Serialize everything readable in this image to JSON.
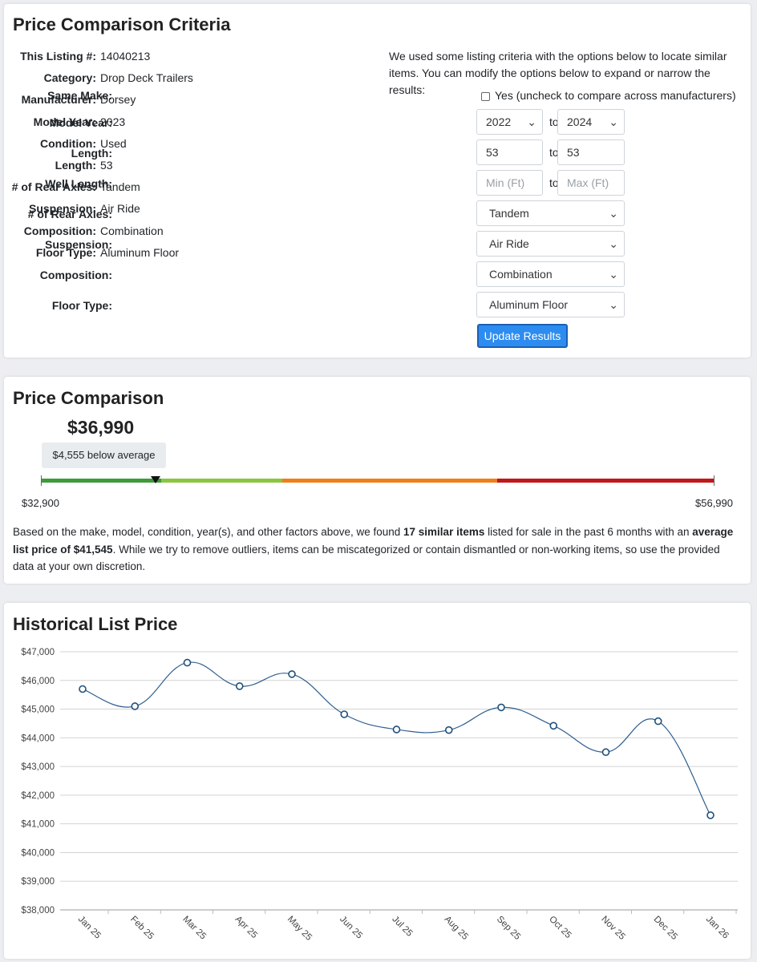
{
  "criteria": {
    "title": "Price Comparison Criteria",
    "specs": [
      {
        "label": "This Listing #:",
        "value": "14040213"
      },
      {
        "label": "Category:",
        "value": "Drop Deck Trailers"
      },
      {
        "label": "Manufacturer:",
        "value": "Dorsey"
      },
      {
        "label": "Model Year:",
        "value": "2023"
      },
      {
        "label": "Condition:",
        "value": "Used"
      },
      {
        "label": "Length:",
        "value": "53"
      },
      {
        "label": "# of Rear Axles:",
        "value": "Tandem"
      },
      {
        "label": "Suspension:",
        "value": "Air Ride"
      },
      {
        "label": "Composition:",
        "value": "Combination"
      },
      {
        "label": "Floor Type:",
        "value": "Aluminum Floor"
      }
    ],
    "intro": "We used some listing criteria with the options below to locate similar items. You can modify the options below to expand or narrow the results:",
    "same_make": {
      "label": "Same Make:",
      "checkbox_text": "Yes (uncheck to compare across manufacturers)",
      "checked": false
    },
    "to_text": "to",
    "model_year": {
      "label": "Model Year:",
      "from": "2022",
      "to": "2024"
    },
    "length": {
      "label": "Length:",
      "from": "53",
      "to": "53"
    },
    "well_length": {
      "label": "Well Length:",
      "min_placeholder": "Min (Ft)",
      "max_placeholder": "Max (Ft)"
    },
    "rear_axles": {
      "label": "# of Rear Axles:",
      "value": "Tandem"
    },
    "suspension": {
      "label": "Suspension:",
      "value": "Air Ride"
    },
    "composition": {
      "label": "Composition:",
      "value": "Combination"
    },
    "floor_type": {
      "label": "Floor Type:",
      "value": "Aluminum Floor"
    },
    "update_button": "Update Results"
  },
  "comparison": {
    "title": "Price Comparison",
    "price": "$36,990",
    "below_text": "$4,555 below average",
    "min": "$32,900",
    "max": "$56,990",
    "scale_colors": [
      "#3f9a3a",
      "#8cc63f",
      "#ef7f1a",
      "#c0181b"
    ],
    "summary_pre": "Based on the make, model, condition, year(s), and other factors above, we found ",
    "summary_bold1": "17 similar items",
    "summary_mid": " listed for sale in the past 6 months with an ",
    "summary_bold2": "average list price of $41,545",
    "summary_post": ". While we try to remove outliers, items can be miscategorized or contain dismantled or non-working items, so use the provided data at your own discretion."
  },
  "history": {
    "title": "Historical List Price"
  },
  "chart_data": {
    "type": "line",
    "title": "Historical List Price",
    "categories": [
      "Jan 25",
      "Feb 25",
      "Mar 25",
      "Apr 25",
      "May 25",
      "Jun 25",
      "Jul 25",
      "Aug 25",
      "Sep 25",
      "Oct 25",
      "Nov 25",
      "Dec 25",
      "Jan 26"
    ],
    "values": [
      45700,
      45100,
      46620,
      45800,
      46220,
      44820,
      44290,
      44270,
      45060,
      44420,
      43500,
      44580,
      41300
    ],
    "ylim": [
      38000,
      47000
    ],
    "yticks": [
      "$38,000",
      "$39,000",
      "$40,000",
      "$41,000",
      "$42,000",
      "$43,000",
      "$44,000",
      "$45,000",
      "$46,000",
      "$47,000"
    ],
    "grid": true,
    "line_color": "#2f5f8f"
  }
}
